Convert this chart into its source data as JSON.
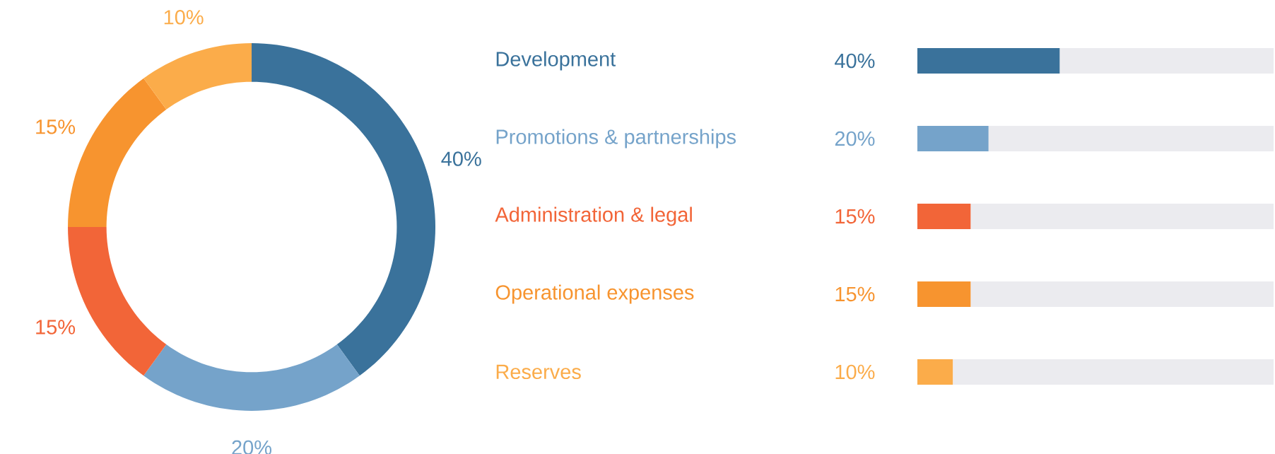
{
  "chart_data": [
    {
      "type": "donut",
      "categories": [
        null,
        null,
        null,
        null,
        null
      ],
      "values": [
        40,
        20,
        15,
        15,
        10
      ],
      "colors": [
        "#3a729b",
        "#75a3ca",
        "#f26538",
        "#f7942f",
        "#fbac4a"
      ],
      "value_labels": [
        "40%",
        "20%",
        "15%",
        "15%",
        "10%"
      ]
    },
    {
      "type": "bar",
      "orientation": "horizontal",
      "categories": [
        "Development",
        "Promotions & partnerships",
        "Administration & legal",
        "Operational expenses",
        "Reserves"
      ],
      "xlim": [
        0,
        100
      ],
      "stacked": true,
      "series": [
        {
          "colors": [
            "#3a729b",
            "#75a3ca",
            "#f26538",
            "#f7942f",
            "#fbac4a"
          ],
          "values": [
            40,
            20,
            15,
            15,
            10
          ],
          "value_labels": [
            "40%",
            "20%",
            "15%",
            "15%",
            "10%"
          ]
        },
        {
          "color": "#ebebef",
          "values": [
            60,
            80,
            85,
            85,
            90
          ]
        }
      ]
    }
  ]
}
